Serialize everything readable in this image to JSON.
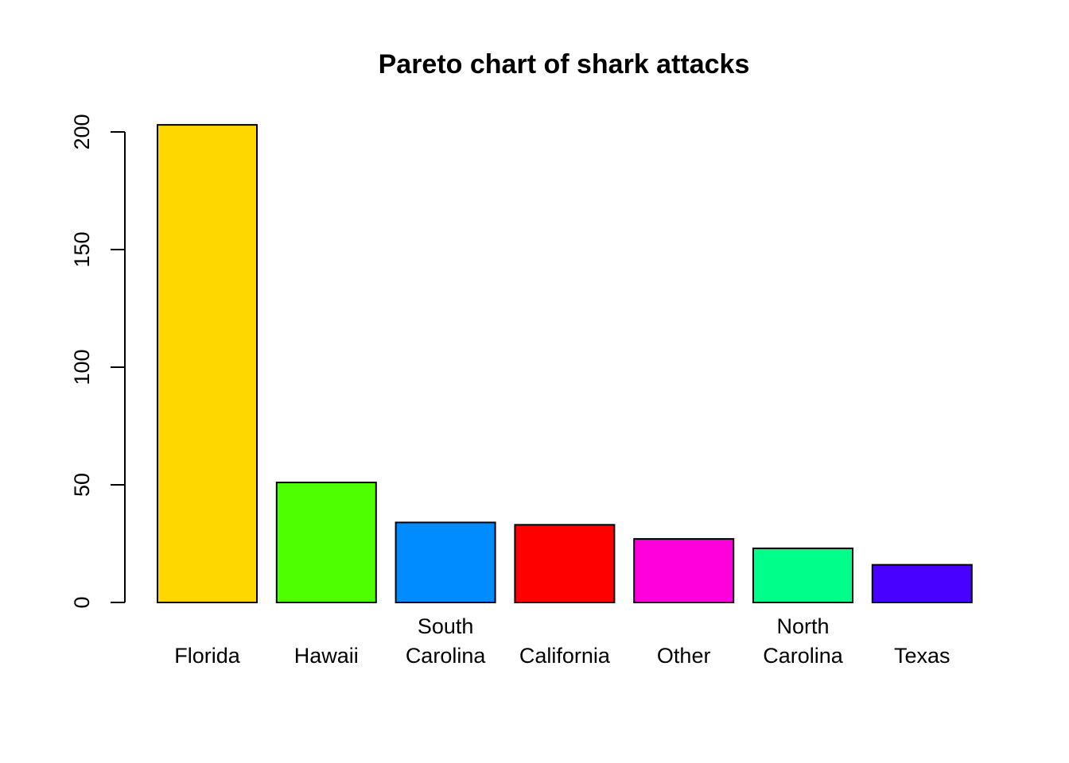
{
  "chart_data": {
    "type": "bar",
    "title": "Pareto chart of shark attacks",
    "xlabel": "",
    "ylabel": "",
    "categories": [
      [
        "Florida"
      ],
      [
        "Hawaii"
      ],
      [
        "South",
        "Carolina"
      ],
      [
        "California"
      ],
      [
        "Other"
      ],
      [
        "North",
        "Carolina"
      ],
      [
        "Texas"
      ]
    ],
    "values": [
      203,
      51,
      34,
      33,
      27,
      23,
      16
    ],
    "colors": [
      "#FFD700",
      "#4DFF00",
      "#008BFF",
      "#FF0000",
      "#FF00DD",
      "#00FF8A",
      "#4800FF"
    ],
    "ylim": [
      0,
      200
    ],
    "yticks": [
      0,
      50,
      100,
      150,
      200
    ],
    "grid": false,
    "legend": "none"
  }
}
